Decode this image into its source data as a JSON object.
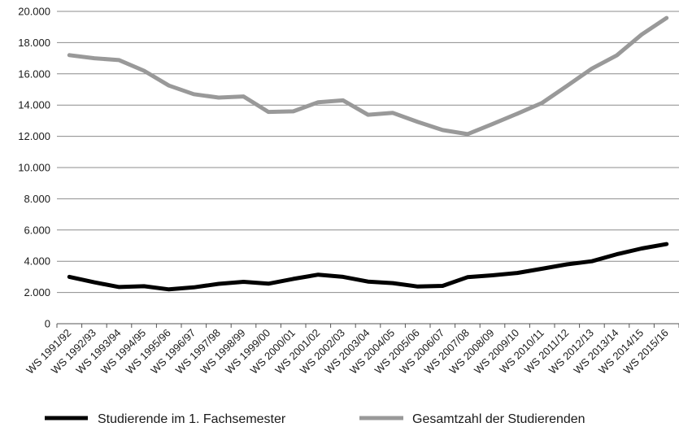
{
  "chart_data": {
    "type": "line",
    "categories": [
      "WS 1991/92",
      "WS 1992/93",
      "WS 1993/94",
      "WS 1994/95",
      "WS 1995/96",
      "WS 1996/97",
      "WS 1997/98",
      "WS 1998/99",
      "WS 1999/00",
      "WS 2000/01",
      "WS 2001/02",
      "WS 2002/03",
      "WS 2003/04",
      "WS 2004/05",
      "WS 2005/06",
      "WS 2006/07",
      "WS 2007/08",
      "WS 2008/09",
      "WS 2009/10",
      "WS 2010/11",
      "WS 2011/12",
      "WS 2012/13",
      "WS 2013/14",
      "WS 2014/15",
      "WS 2015/16"
    ],
    "series": [
      {
        "name": "Studierende im 1. Fachsemester",
        "color": "#000000",
        "values": [
          3000,
          2650,
          2350,
          2400,
          2200,
          2330,
          2550,
          2680,
          2560,
          2870,
          3140,
          3000,
          2700,
          2600,
          2380,
          2420,
          2980,
          3100,
          3250,
          3520,
          3800,
          4000,
          4450,
          4820,
          5100
        ]
      },
      {
        "name": "Gesamtzahl der Studierenden",
        "color": "#999999",
        "values": [
          17200,
          17000,
          16880,
          16200,
          15250,
          14700,
          14480,
          14550,
          13560,
          13600,
          14180,
          14300,
          13380,
          13500,
          12920,
          12400,
          12140,
          12780,
          13450,
          14140,
          15230,
          16340,
          17180,
          18520,
          19580
        ]
      }
    ],
    "yticks": [
      "0",
      "2.000",
      "4.000",
      "6.000",
      "8.000",
      "10.000",
      "12.000",
      "14.000",
      "16.000",
      "18.000",
      "20.000"
    ],
    "ylim": [
      0,
      20000
    ],
    "grid": true,
    "legend": "bottom"
  }
}
